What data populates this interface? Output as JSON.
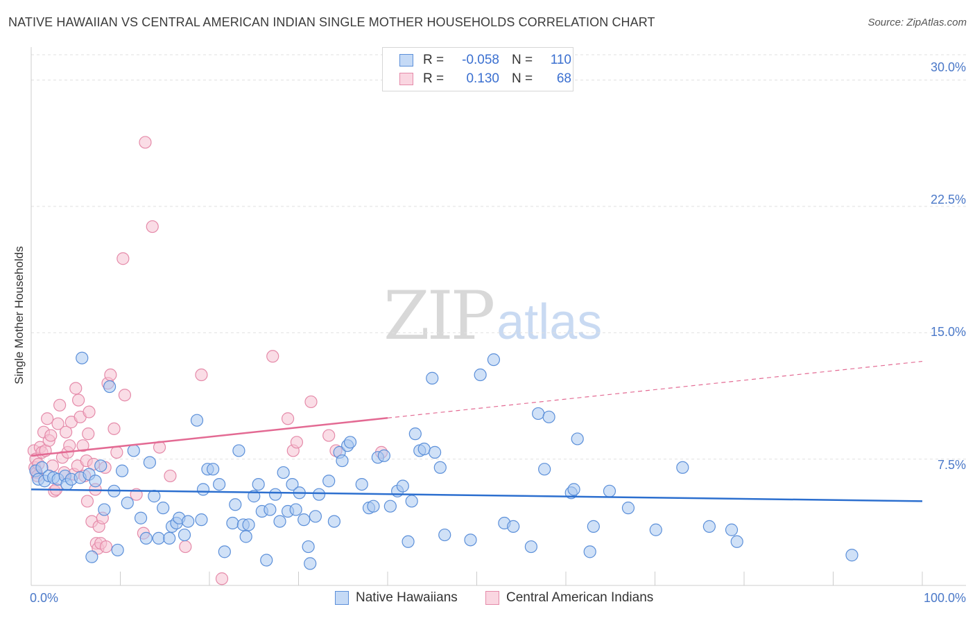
{
  "title": "NATIVE HAWAIIAN VS CENTRAL AMERICAN INDIAN SINGLE MOTHER HOUSEHOLDS CORRELATION CHART",
  "source": "Source: ZipAtlas.com",
  "watermark": {
    "zip": "ZIP",
    "atlas": "atlas"
  },
  "legend": {
    "rows": [
      {
        "r_label": "R =",
        "r_value": "-0.058",
        "n_label": "N =",
        "n_value": "110"
      },
      {
        "r_label": "R =",
        "r_value": "0.130",
        "n_label": "N =",
        "n_value": "68"
      }
    ]
  },
  "colors": {
    "blue_fill": "#a9c8f0",
    "blue_stroke": "#5b8fd9",
    "blue_line": "#2c6fcf",
    "pink_fill": "#f6c1d1",
    "pink_stroke": "#e58aa9",
    "pink_line": "#e36a93",
    "grid": "#e0e0e0",
    "axis_text": "#4a78c8"
  },
  "chart_data": {
    "type": "scatter",
    "title": "NATIVE HAWAIIAN VS CENTRAL AMERICAN INDIAN SINGLE MOTHER HOUSEHOLDS CORRELATION CHART",
    "xlabel": "",
    "ylabel": "Single Mother Households",
    "xlim": [
      0,
      100
    ],
    "ylim": [
      0,
      31.5
    ],
    "x_tick_labels": [
      "0.0%",
      "100.0%"
    ],
    "y_ticks": [
      7.5,
      15.0,
      22.5,
      30.0
    ],
    "y_tick_labels": [
      "7.5%",
      "15.0%",
      "22.5%",
      "30.0%"
    ],
    "grid": true,
    "legend_position": "bottom",
    "series": [
      {
        "name": "Native Hawaiians",
        "color": "#a9c8f0",
        "trend": {
          "x": [
            0,
            100
          ],
          "y": [
            5.7,
            5.0
          ],
          "dashed_from": null
        },
        "points": [
          [
            0.5,
            6.8
          ],
          [
            0.8,
            6.3
          ],
          [
            1.2,
            7.0
          ],
          [
            1.5,
            6.2
          ],
          [
            2.0,
            6.5
          ],
          [
            2.5,
            6.4
          ],
          [
            3.0,
            6.3
          ],
          [
            3.8,
            6.5
          ],
          [
            4.0,
            6.0
          ],
          [
            4.5,
            6.3
          ],
          [
            5.5,
            6.4
          ],
          [
            5.7,
            13.5
          ],
          [
            6.5,
            6.6
          ],
          [
            6.8,
            1.7
          ],
          [
            7.2,
            6.2
          ],
          [
            7.8,
            7.1
          ],
          [
            8.2,
            4.5
          ],
          [
            8.8,
            11.8
          ],
          [
            9.3,
            5.6
          ],
          [
            9.7,
            2.1
          ],
          [
            10.2,
            6.8
          ],
          [
            10.8,
            4.9
          ],
          [
            11.5,
            8.0
          ],
          [
            12.3,
            4.0
          ],
          [
            12.9,
            2.8
          ],
          [
            13.3,
            7.3
          ],
          [
            13.8,
            5.3
          ],
          [
            14.3,
            2.8
          ],
          [
            14.8,
            4.6
          ],
          [
            15.5,
            2.8
          ],
          [
            15.8,
            3.5
          ],
          [
            16.3,
            3.7
          ],
          [
            16.6,
            4.0
          ],
          [
            17.2,
            3.0
          ],
          [
            17.6,
            3.8
          ],
          [
            18.6,
            9.8
          ],
          [
            19.1,
            3.9
          ],
          [
            19.3,
            5.7
          ],
          [
            19.8,
            6.9
          ],
          [
            20.4,
            6.9
          ],
          [
            21.1,
            6.0
          ],
          [
            21.7,
            2.0
          ],
          [
            22.6,
            3.7
          ],
          [
            22.9,
            4.8
          ],
          [
            23.3,
            8.0
          ],
          [
            23.8,
            3.6
          ],
          [
            24.1,
            2.9
          ],
          [
            24.4,
            3.6
          ],
          [
            25.0,
            5.3
          ],
          [
            25.5,
            6.0
          ],
          [
            25.9,
            4.4
          ],
          [
            26.4,
            1.5
          ],
          [
            26.8,
            4.5
          ],
          [
            27.4,
            5.4
          ],
          [
            27.9,
            3.8
          ],
          [
            28.3,
            6.7
          ],
          [
            28.8,
            4.4
          ],
          [
            29.3,
            6.0
          ],
          [
            29.7,
            4.5
          ],
          [
            30.1,
            5.5
          ],
          [
            30.6,
            3.9
          ],
          [
            31.1,
            2.3
          ],
          [
            31.3,
            1.3
          ],
          [
            31.9,
            4.1
          ],
          [
            32.3,
            5.4
          ],
          [
            33.4,
            6.2
          ],
          [
            34.0,
            3.8
          ],
          [
            34.6,
            7.9
          ],
          [
            34.9,
            7.4
          ],
          [
            35.5,
            8.3
          ],
          [
            35.8,
            8.5
          ],
          [
            37.1,
            6.0
          ],
          [
            37.9,
            4.6
          ],
          [
            38.4,
            4.7
          ],
          [
            38.9,
            7.6
          ],
          [
            39.6,
            7.7
          ],
          [
            40.3,
            4.7
          ],
          [
            41.1,
            5.6
          ],
          [
            41.7,
            5.9
          ],
          [
            42.3,
            2.6
          ],
          [
            42.7,
            5.0
          ],
          [
            43.1,
            9.0
          ],
          [
            43.6,
            8.0
          ],
          [
            44.1,
            8.1
          ],
          [
            45.0,
            12.3
          ],
          [
            45.3,
            7.9
          ],
          [
            45.9,
            7.0
          ],
          [
            46.4,
            3.0
          ],
          [
            49.3,
            2.7
          ],
          [
            50.4,
            12.5
          ],
          [
            51.9,
            13.4
          ],
          [
            53.1,
            3.7
          ],
          [
            54.1,
            3.5
          ],
          [
            56.1,
            2.3
          ],
          [
            56.9,
            10.2
          ],
          [
            57.6,
            6.9
          ],
          [
            58.1,
            10.0
          ],
          [
            60.6,
            5.5
          ],
          [
            60.9,
            5.7
          ],
          [
            61.3,
            8.7
          ],
          [
            62.7,
            2.0
          ],
          [
            63.1,
            3.5
          ],
          [
            64.9,
            5.6
          ],
          [
            67.0,
            4.6
          ],
          [
            70.1,
            3.3
          ],
          [
            73.1,
            7.0
          ],
          [
            76.1,
            3.5
          ],
          [
            78.6,
            3.3
          ],
          [
            79.2,
            2.6
          ],
          [
            92.1,
            1.8
          ]
        ]
      },
      {
        "name": "Central American Indians",
        "color": "#f6c1d1",
        "trend": {
          "x": [
            0,
            100
          ],
          "y": [
            7.7,
            13.3
          ],
          "dashed_from": 40
        },
        "points": [
          [
            0.3,
            8.0
          ],
          [
            0.4,
            7.0
          ],
          [
            0.5,
            7.5
          ],
          [
            0.6,
            6.7
          ],
          [
            0.7,
            6.5
          ],
          [
            0.8,
            7.2
          ],
          [
            1.0,
            8.2
          ],
          [
            1.2,
            7.9
          ],
          [
            1.4,
            9.1
          ],
          [
            1.6,
            8.0
          ],
          [
            1.8,
            9.9
          ],
          [
            2.0,
            8.6
          ],
          [
            2.2,
            8.9
          ],
          [
            2.4,
            7.1
          ],
          [
            2.6,
            5.6
          ],
          [
            2.8,
            5.7
          ],
          [
            3.0,
            9.6
          ],
          [
            3.2,
            10.7
          ],
          [
            3.5,
            7.6
          ],
          [
            3.7,
            6.7
          ],
          [
            3.9,
            9.1
          ],
          [
            4.1,
            7.9
          ],
          [
            4.3,
            8.3
          ],
          [
            4.5,
            9.7
          ],
          [
            4.8,
            6.6
          ],
          [
            5.0,
            11.7
          ],
          [
            5.2,
            7.1
          ],
          [
            5.3,
            11.0
          ],
          [
            5.5,
            10.0
          ],
          [
            5.8,
            8.3
          ],
          [
            6.0,
            6.5
          ],
          [
            6.2,
            7.4
          ],
          [
            6.3,
            5.0
          ],
          [
            6.4,
            9.0
          ],
          [
            6.5,
            10.3
          ],
          [
            6.8,
            3.8
          ],
          [
            7.0,
            7.2
          ],
          [
            7.2,
            5.7
          ],
          [
            7.3,
            2.5
          ],
          [
            7.5,
            2.2
          ],
          [
            7.6,
            3.5
          ],
          [
            7.8,
            2.5
          ],
          [
            8.0,
            4.0
          ],
          [
            8.3,
            7.0
          ],
          [
            8.4,
            2.3
          ],
          [
            8.6,
            12.0
          ],
          [
            8.9,
            12.5
          ],
          [
            9.3,
            9.3
          ],
          [
            9.6,
            7.9
          ],
          [
            10.3,
            19.4
          ],
          [
            10.5,
            11.3
          ],
          [
            11.8,
            5.4
          ],
          [
            12.6,
            3.1
          ],
          [
            12.8,
            26.3
          ],
          [
            13.6,
            21.3
          ],
          [
            14.4,
            8.2
          ],
          [
            15.6,
            6.5
          ],
          [
            17.3,
            2.3
          ],
          [
            19.1,
            12.5
          ],
          [
            21.4,
            0.4
          ],
          [
            27.1,
            13.6
          ],
          [
            28.8,
            9.9
          ],
          [
            29.4,
            8.0
          ],
          [
            29.8,
            8.5
          ],
          [
            31.4,
            10.9
          ],
          [
            33.4,
            8.9
          ],
          [
            34.2,
            8.0
          ],
          [
            39.3,
            7.9
          ]
        ]
      }
    ]
  },
  "bottom_legend": [
    "Native Hawaiians",
    "Central American Indians"
  ]
}
